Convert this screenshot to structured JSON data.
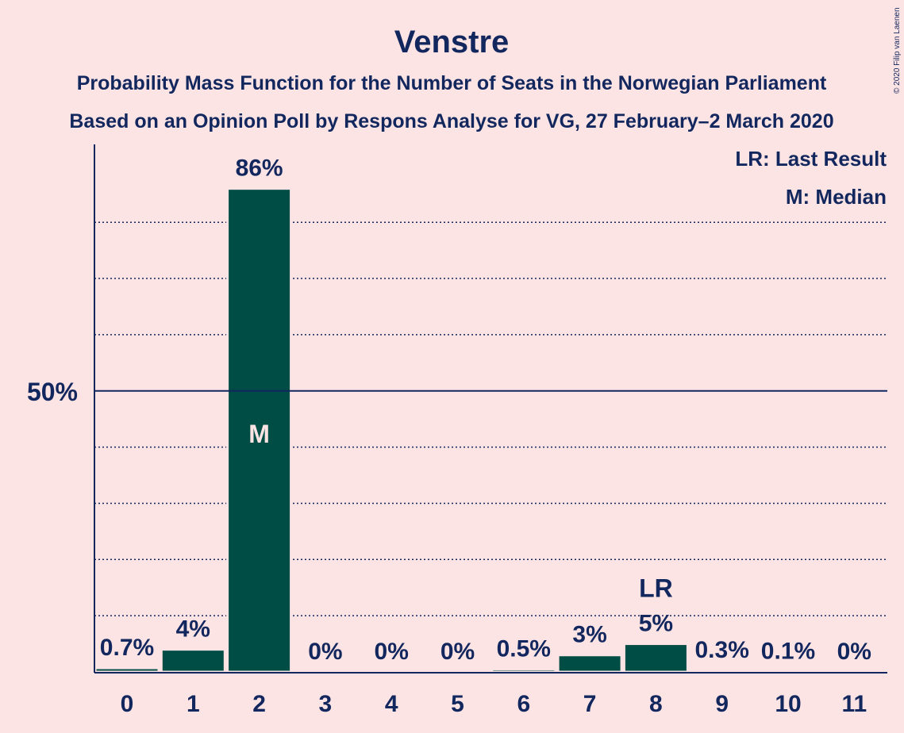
{
  "chart_data": {
    "type": "bar",
    "title": "Venstre",
    "subtitle_1": "Probability Mass Function for the Number of Seats in the Norwegian Parliament",
    "subtitle_2": "Based on an Opinion Poll by Respons Analyse for VG, 27 February–2 March 2020",
    "categories": [
      "0",
      "1",
      "2",
      "3",
      "4",
      "5",
      "6",
      "7",
      "8",
      "9",
      "10",
      "11"
    ],
    "values": [
      0.7,
      4,
      86,
      0,
      0,
      0,
      0.5,
      3,
      5,
      0.3,
      0.1,
      0
    ],
    "value_labels": [
      "0.7%",
      "4%",
      "86%",
      "0%",
      "0%",
      "0%",
      "0.5%",
      "3%",
      "5%",
      "0.3%",
      "0.1%",
      "0%"
    ],
    "ylim": [
      0,
      94
    ],
    "y_tick_label": "50%",
    "y_tick_value": 50,
    "gridlines": [
      10,
      20,
      30,
      40,
      60,
      70,
      80
    ],
    "median_index": 2,
    "median_label": "M",
    "last_result_index": 8,
    "last_result_label": "LR",
    "legend": [
      "LR: Last Result",
      "M: Median"
    ],
    "legend_position": "top-right",
    "copyright": "© 2020 Filip van Laenen",
    "colors": {
      "background": "#fde4e4",
      "bar": "#004d45",
      "text": "#12275e",
      "median_text": "#fde4e4"
    }
  }
}
